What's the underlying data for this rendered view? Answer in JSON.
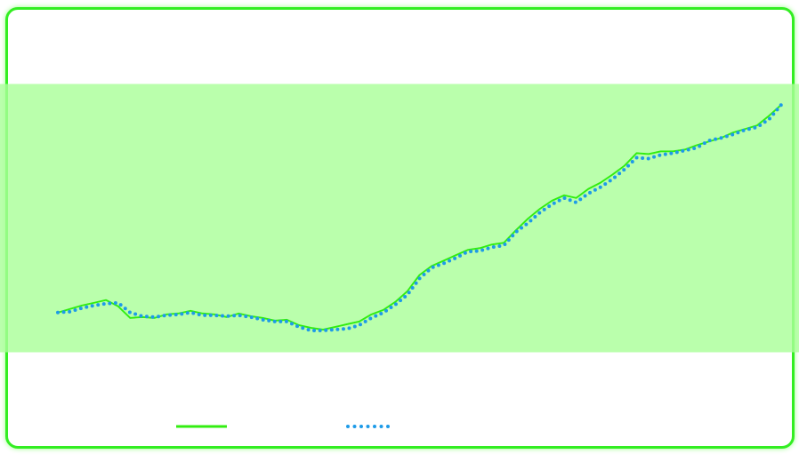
{
  "chart_data": {
    "type": "line",
    "series": [
      {
        "color": "#33ee11",
        "style": "solid",
        "values": [
          150,
          154,
          158,
          161,
          164,
          157,
          144,
          145,
          144,
          148,
          149,
          152,
          149,
          148,
          145,
          149,
          146,
          144,
          141,
          142,
          136,
          133,
          131,
          134,
          137,
          140,
          148,
          153,
          162,
          174,
          192,
          202,
          208,
          214,
          220,
          222,
          226,
          228,
          242,
          255,
          266,
          275,
          281,
          278,
          288,
          295,
          304,
          314,
          328,
          327,
          330,
          330,
          332,
          337,
          341,
          345,
          351,
          355,
          359,
          370,
          382
        ]
      },
      {
        "color": "#1e9be8",
        "style": "dotted",
        "values": [
          150,
          151,
          155,
          158,
          160,
          161,
          150,
          146,
          145,
          147,
          148,
          150,
          147,
          147,
          146,
          147,
          145,
          142,
          140,
          140,
          134,
          130,
          130,
          131,
          132,
          136,
          144,
          150,
          159,
          170,
          188,
          200,
          205,
          211,
          218,
          219,
          223,
          225,
          240,
          250,
          262,
          271,
          278,
          273,
          283,
          290,
          299,
          310,
          323,
          322,
          326,
          328,
          331,
          334,
          342,
          345,
          349,
          354,
          357,
          366,
          382
        ]
      }
    ]
  }
}
